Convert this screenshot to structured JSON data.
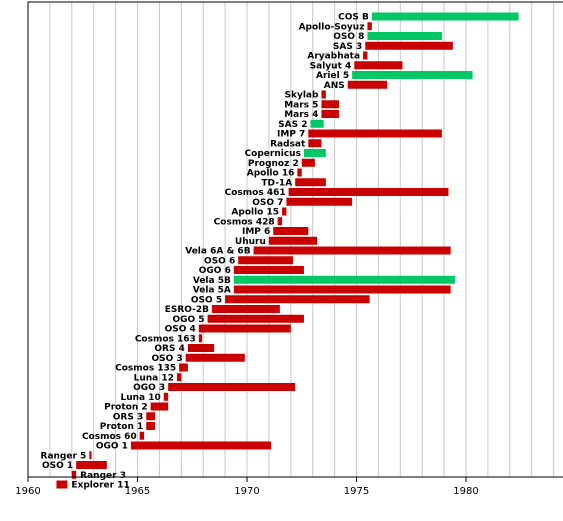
{
  "chart_data": {
    "type": "bar",
    "orientation": "horizontal-timeline",
    "title": "",
    "xlabel": "",
    "ylabel": "",
    "xlim": [
      1960,
      1984.5
    ],
    "x_ticks": [
      1960,
      1965,
      1970,
      1975,
      1980
    ],
    "grid": true,
    "colors": {
      "default": "#c80000",
      "highlight": "#00c864"
    },
    "missions": [
      {
        "name": "COS B",
        "start": 1975.7,
        "end": 1982.4,
        "color": "green"
      },
      {
        "name": "Apollo-Soyuz",
        "start": 1975.5,
        "end": 1975.7,
        "color": "red"
      },
      {
        "name": "OSO 8",
        "start": 1975.5,
        "end": 1978.9,
        "color": "green"
      },
      {
        "name": "SAS 3",
        "start": 1975.4,
        "end": 1979.4,
        "color": "red"
      },
      {
        "name": "Aryabhata",
        "start": 1975.3,
        "end": 1975.5,
        "color": "red"
      },
      {
        "name": "Salyut 4",
        "start": 1974.9,
        "end": 1977.1,
        "color": "red"
      },
      {
        "name": "Ariel 5",
        "start": 1974.8,
        "end": 1980.3,
        "color": "green"
      },
      {
        "name": "ANS",
        "start": 1974.6,
        "end": 1976.4,
        "color": "red"
      },
      {
        "name": "Skylab",
        "start": 1973.4,
        "end": 1973.6,
        "color": "red"
      },
      {
        "name": "Mars 5",
        "start": 1973.4,
        "end": 1974.2,
        "color": "red"
      },
      {
        "name": "Mars 4",
        "start": 1973.4,
        "end": 1974.2,
        "color": "red"
      },
      {
        "name": "SAS 2",
        "start": 1972.9,
        "end": 1973.5,
        "color": "green"
      },
      {
        "name": "IMP 7",
        "start": 1972.8,
        "end": 1978.9,
        "color": "red"
      },
      {
        "name": "Radsat",
        "start": 1972.8,
        "end": 1973.4,
        "color": "red"
      },
      {
        "name": "Copernicus",
        "start": 1972.6,
        "end": 1973.6,
        "color": "green"
      },
      {
        "name": "Prognoz 2",
        "start": 1972.5,
        "end": 1973.1,
        "color": "red"
      },
      {
        "name": "Apollo 16",
        "start": 1972.3,
        "end": 1972.5,
        "color": "red"
      },
      {
        "name": "TD-1A",
        "start": 1972.2,
        "end": 1973.6,
        "color": "red"
      },
      {
        "name": "Cosmos 461",
        "start": 1971.9,
        "end": 1979.2,
        "color": "red"
      },
      {
        "name": "OSO 7",
        "start": 1971.8,
        "end": 1974.8,
        "color": "red"
      },
      {
        "name": "Apollo 15",
        "start": 1971.6,
        "end": 1971.8,
        "color": "red"
      },
      {
        "name": "Cosmos 428",
        "start": 1971.4,
        "end": 1971.6,
        "color": "red"
      },
      {
        "name": "IMP 6",
        "start": 1971.2,
        "end": 1972.8,
        "color": "red"
      },
      {
        "name": "Uhuru",
        "start": 1971.0,
        "end": 1973.2,
        "color": "red"
      },
      {
        "name": "Vela 6A & 6B",
        "start": 1970.3,
        "end": 1979.3,
        "color": "red"
      },
      {
        "name": "OSO 6",
        "start": 1969.6,
        "end": 1972.1,
        "color": "red"
      },
      {
        "name": "OGO 6",
        "start": 1969.4,
        "end": 1972.6,
        "color": "red"
      },
      {
        "name": "Vela 5B",
        "start": 1969.4,
        "end": 1979.5,
        "color": "green"
      },
      {
        "name": "Vela 5A",
        "start": 1969.4,
        "end": 1979.3,
        "color": "red"
      },
      {
        "name": "OSO 5",
        "start": 1969.0,
        "end": 1975.6,
        "color": "red"
      },
      {
        "name": "ESRO-2B",
        "start": 1968.4,
        "end": 1971.5,
        "color": "red"
      },
      {
        "name": "OGO 5",
        "start": 1968.2,
        "end": 1972.6,
        "color": "red"
      },
      {
        "name": "OSO 4",
        "start": 1967.8,
        "end": 1972.0,
        "color": "red"
      },
      {
        "name": "Cosmos 163",
        "start": 1967.8,
        "end": 1967.95,
        "color": "red"
      },
      {
        "name": "ORS 4",
        "start": 1967.3,
        "end": 1968.5,
        "color": "red"
      },
      {
        "name": "OSO 3",
        "start": 1967.2,
        "end": 1969.9,
        "color": "red"
      },
      {
        "name": "Cosmos 135",
        "start": 1966.9,
        "end": 1967.3,
        "color": "red"
      },
      {
        "name": "Luna 12",
        "start": 1966.8,
        "end": 1967.0,
        "color": "red"
      },
      {
        "name": "OGO 3",
        "start": 1966.4,
        "end": 1972.2,
        "color": "red"
      },
      {
        "name": "Luna 10",
        "start": 1966.2,
        "end": 1966.4,
        "color": "red"
      },
      {
        "name": "Proton 2",
        "start": 1965.6,
        "end": 1966.4,
        "color": "red"
      },
      {
        "name": "ORS 3",
        "start": 1965.4,
        "end": 1965.8,
        "color": "red"
      },
      {
        "name": "Proton 1",
        "start": 1965.4,
        "end": 1965.8,
        "color": "red"
      },
      {
        "name": "Cosmos 60",
        "start": 1965.1,
        "end": 1965.3,
        "color": "red"
      },
      {
        "name": "OGO 1",
        "start": 1964.7,
        "end": 1971.1,
        "color": "red"
      },
      {
        "name": "Ranger 5",
        "start": 1962.8,
        "end": 1962.9,
        "color": "red"
      },
      {
        "name": "OSO 1",
        "start": 1962.2,
        "end": 1963.6,
        "color": "red"
      },
      {
        "name": "Ranger 3",
        "start": 1962.0,
        "end": 1962.2,
        "color": "red"
      },
      {
        "name": "Explorer 11",
        "start": 1961.3,
        "end": 1961.8,
        "color": "red"
      }
    ]
  }
}
